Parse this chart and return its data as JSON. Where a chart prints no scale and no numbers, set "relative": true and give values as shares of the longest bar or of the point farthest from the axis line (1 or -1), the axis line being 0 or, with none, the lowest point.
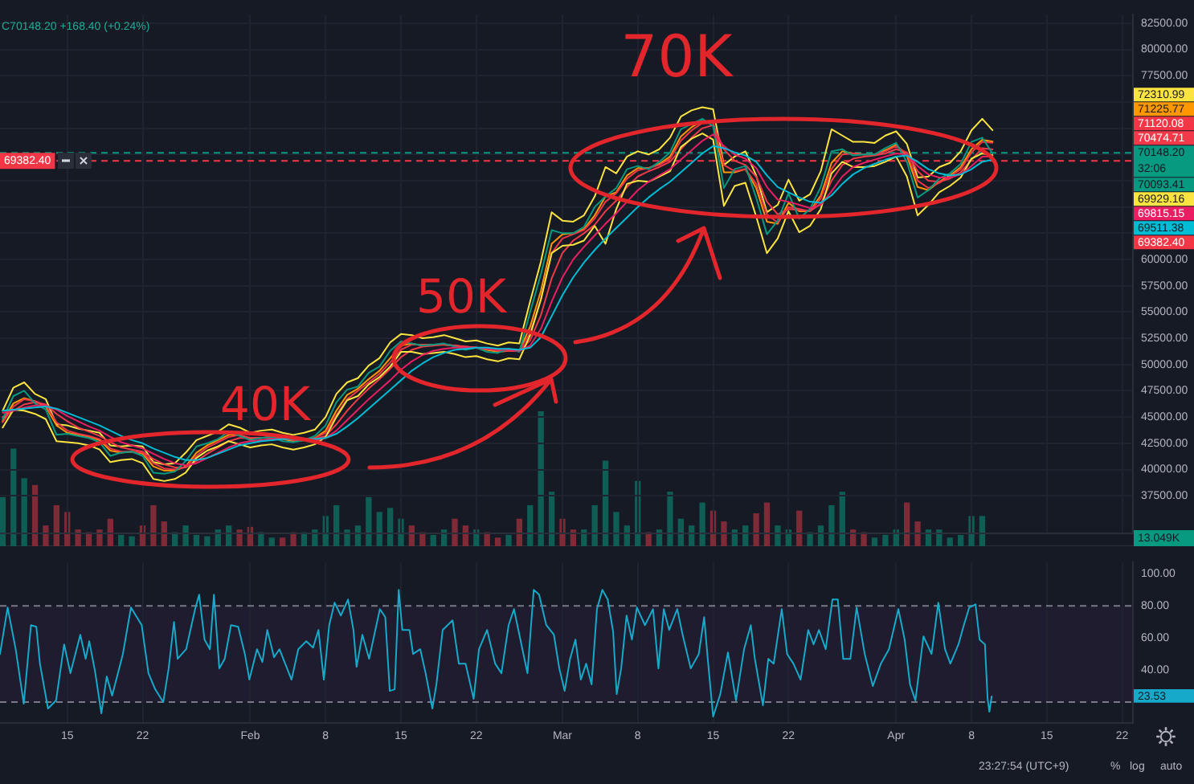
{
  "chart_data": [
    {
      "type": "line",
      "x": [
        "--01-09",
        "--01-10",
        "--01-11",
        "--01-12",
        "--01-13",
        "--01-14",
        "--01-15",
        "--01-16",
        "--01-17",
        "--01-18",
        "--01-19",
        "--01-20",
        "--01-21",
        "--01-22",
        "--01-23",
        "--01-24",
        "--01-25",
        "--01-26",
        "--01-27",
        "--01-28",
        "--01-29",
        "--01-30",
        "--01-31",
        "--02-01",
        "--02-02",
        "--02-03",
        "--02-04",
        "--02-05",
        "--02-06",
        "--02-07",
        "--02-08",
        "--02-09",
        "--02-10",
        "--02-11",
        "--02-12",
        "--02-13",
        "--02-14",
        "--02-15",
        "--02-16",
        "--02-17",
        "--02-18",
        "--02-19",
        "--02-20",
        "--02-21",
        "--02-22",
        "--02-23",
        "--02-24",
        "--02-25",
        "--02-26",
        "--02-27",
        "--02-28",
        "--02-29",
        "--03-01",
        "--03-02",
        "--03-03",
        "--03-04",
        "--03-05",
        "--03-06",
        "--03-07",
        "--03-08",
        "--03-09",
        "--03-10",
        "--03-11",
        "--03-12",
        "--03-13",
        "--03-14",
        "--03-15",
        "--03-16",
        "--03-17",
        "--03-18",
        "--03-19",
        "--03-20",
        "--03-21",
        "--03-22",
        "--03-23",
        "--03-24",
        "--03-25",
        "--03-26",
        "--03-27",
        "--03-28",
        "--03-29",
        "--03-30",
        "--03-31",
        "--04-01",
        "--04-02",
        "--04-03",
        "--04-04",
        "--04-05",
        "--04-06",
        "--04-07",
        "--04-08",
        "--04-09",
        "--04-09T23:00"
      ],
      "series": [
        {
          "color": "#fbe43f",
          "values": [
            45600,
            47800,
            48300,
            47200,
            46700,
            44300,
            44200,
            43900,
            43700,
            43500,
            42300,
            42200,
            42300,
            42200,
            40700,
            40500,
            40600,
            41600,
            42800,
            43200,
            43600,
            44300,
            44000,
            43500,
            43700,
            43800,
            43500,
            43300,
            43500,
            43800,
            45000,
            47200,
            48300,
            48700,
            49900,
            50600,
            52100,
            52900,
            52800,
            52500,
            52600,
            52800,
            52500,
            52200,
            52300,
            52000,
            51800,
            52100,
            52000,
            56000,
            59800,
            64500,
            63700,
            63600,
            64200,
            66000,
            68800,
            68200,
            69800,
            70300,
            70000,
            70500,
            71600,
            73600,
            74200,
            74500,
            74300,
            69000,
            69800,
            70300,
            68000,
            64500,
            65200,
            67600,
            65600,
            66200,
            68400,
            72400,
            71800,
            71200,
            71200,
            71100,
            71800,
            72200,
            71000,
            67800,
            67900,
            68800,
            69200,
            70300,
            72300,
            73400,
            72310.99
          ]
        },
        {
          "color": "#ff9800",
          "values": [
            44600,
            46300,
            46800,
            46500,
            46000,
            44200,
            43500,
            43300,
            43100,
            42800,
            41800,
            41600,
            41700,
            41500,
            40300,
            39900,
            39900,
            40300,
            41600,
            42300,
            42800,
            43300,
            43300,
            42900,
            43000,
            43100,
            42900,
            42700,
            42800,
            43000,
            43700,
            45600,
            47100,
            47700,
            48600,
            49400,
            50600,
            51800,
            52000,
            51800,
            51900,
            51900,
            51800,
            51600,
            51600,
            51400,
            51200,
            51300,
            51300,
            53600,
            57000,
            61500,
            62400,
            62500,
            62900,
            64200,
            66000,
            66400,
            68000,
            68700,
            68700,
            69100,
            69800,
            71700,
            72600,
            73200,
            73000,
            68300,
            68300,
            68600,
            66800,
            63600,
            63400,
            65400,
            64600,
            64600,
            66100,
            69200,
            70300,
            70100,
            70000,
            70000,
            70400,
            70900,
            69900,
            66900,
            66600,
            67400,
            68000,
            68800,
            70500,
            71400,
            71225.77
          ]
        },
        {
          "color": "#f23645",
          "values": [
            44500,
            46000,
            46700,
            46500,
            46100,
            44500,
            43700,
            43400,
            43200,
            42900,
            42000,
            41700,
            41700,
            41600,
            40600,
            40100,
            40000,
            40200,
            41300,
            42100,
            42600,
            43100,
            43300,
            43000,
            43000,
            43100,
            43000,
            42800,
            42800,
            43000,
            43500,
            45200,
            46700,
            47500,
            48300,
            49100,
            50200,
            51400,
            51900,
            51900,
            51900,
            51900,
            51800,
            51700,
            51600,
            51500,
            51300,
            51300,
            51300,
            53000,
            56200,
            60600,
            62000,
            62400,
            62800,
            63900,
            65500,
            66300,
            67700,
            68500,
            68700,
            69000,
            69600,
            71300,
            72300,
            73000,
            73000,
            69000,
            68400,
            68600,
            67200,
            64300,
            63500,
            65000,
            64800,
            64600,
            65800,
            68600,
            70000,
            70100,
            70000,
            70000,
            70300,
            70800,
            70100,
            67500,
            66800,
            67300,
            67900,
            68600,
            70200,
            71200,
            71120.08
          ]
        },
        {
          "color": "#f03a4a",
          "values": [
            45000,
            45600,
            46200,
            46400,
            46200,
            45300,
            44600,
            44000,
            43600,
            43200,
            42600,
            42100,
            41900,
            41700,
            41000,
            40500,
            40200,
            40200,
            40800,
            41500,
            42100,
            42700,
            43000,
            43000,
            43000,
            43000,
            43000,
            42900,
            42800,
            42900,
            43200,
            44300,
            45600,
            46700,
            47700,
            48600,
            49600,
            50700,
            51400,
            51700,
            51800,
            51900,
            51800,
            51700,
            51600,
            51500,
            51400,
            51300,
            51300,
            52300,
            54700,
            58200,
            60600,
            61800,
            62500,
            63300,
            64600,
            65600,
            66900,
            67900,
            68400,
            68800,
            69300,
            70500,
            71600,
            72500,
            72800,
            70500,
            69400,
            69000,
            67900,
            65500,
            64300,
            64800,
            64700,
            64600,
            65300,
            67500,
            69000,
            69600,
            69800,
            69900,
            70100,
            70500,
            70200,
            68400,
            67500,
            67400,
            67700,
            68300,
            69500,
            70600,
            70474.71
          ]
        },
        {
          "color": "#089981",
          "values": [
            44800,
            47000,
            47500,
            46300,
            45700,
            43300,
            43400,
            43200,
            43000,
            42600,
            41300,
            41600,
            41700,
            41300,
            39700,
            39600,
            39800,
            40800,
            42200,
            42500,
            42900,
            43600,
            43200,
            42800,
            43000,
            43100,
            42700,
            42600,
            42800,
            43200,
            44200,
            46400,
            47600,
            47900,
            49200,
            49800,
            51300,
            52200,
            52000,
            51800,
            51900,
            52000,
            51700,
            51400,
            51600,
            51200,
            51100,
            51500,
            51200,
            55000,
            58600,
            62800,
            62500,
            62500,
            63100,
            65000,
            66000,
            66800,
            68600,
            68900,
            68600,
            69300,
            70200,
            72400,
            72900,
            73400,
            72700,
            66800,
            68600,
            68900,
            65900,
            62400,
            63700,
            66300,
            63900,
            64800,
            66900,
            70300,
            70500,
            69900,
            70000,
            70000,
            70600,
            71100,
            69300,
            65900,
            66600,
            67700,
            68200,
            69100,
            71200,
            71600,
            70093.41
          ]
        },
        {
          "color": "#fbe43f",
          "values": [
            44000,
            45700,
            45600,
            45300,
            44800,
            42700,
            42600,
            42500,
            42300,
            41900,
            40700,
            40900,
            41000,
            40600,
            39100,
            38900,
            39100,
            39700,
            41100,
            41800,
            42200,
            42700,
            42400,
            42100,
            42300,
            42400,
            42100,
            41900,
            42100,
            42400,
            43100,
            45000,
            46600,
            47000,
            48100,
            48800,
            49800,
            51200,
            51200,
            51000,
            51100,
            51200,
            51000,
            50700,
            50800,
            50500,
            50300,
            50600,
            50500,
            52800,
            56200,
            60600,
            61300,
            61400,
            61800,
            63200,
            61500,
            64800,
            67200,
            67500,
            67400,
            67900,
            68400,
            70700,
            71500,
            72000,
            71400,
            65100,
            67000,
            67300,
            64100,
            60600,
            62000,
            64600,
            62600,
            63200,
            64800,
            68200,
            69300,
            68800,
            68800,
            68900,
            69300,
            69800,
            67900,
            64200,
            65200,
            66400,
            67000,
            67800,
            69600,
            70100,
            69929.16
          ]
        },
        {
          "color": "#e91e63",
          "values": [
            45400,
            45600,
            45900,
            46100,
            46100,
            45700,
            45100,
            44600,
            44100,
            43700,
            43100,
            42600,
            42300,
            42000,
            41500,
            41000,
            40600,
            40400,
            40600,
            41100,
            41600,
            42100,
            42500,
            42700,
            42800,
            42900,
            42900,
            42900,
            42800,
            42800,
            43000,
            43700,
            44700,
            45700,
            46700,
            47600,
            48500,
            49500,
            50300,
            50900,
            51300,
            51500,
            51600,
            51600,
            51600,
            51500,
            51400,
            51400,
            51300,
            51800,
            53400,
            56000,
            58300,
            60000,
            61200,
            62300,
            63400,
            64400,
            65500,
            66600,
            67400,
            68000,
            68600,
            69500,
            70400,
            71300,
            71900,
            70800,
            70000,
            69600,
            68700,
            66900,
            65700,
            65500,
            65200,
            64900,
            65200,
            66500,
            67900,
            68800,
            69200,
            69500,
            69800,
            70100,
            70000,
            68900,
            68100,
            67800,
            67800,
            68100,
            68900,
            69800,
            69815.15
          ]
        },
        {
          "color": "#00bcd4",
          "values": [
            45600,
            45700,
            45800,
            45900,
            46000,
            45800,
            45400,
            45000,
            44600,
            44200,
            43700,
            43200,
            42800,
            42500,
            42000,
            41600,
            41200,
            40900,
            40900,
            41100,
            41500,
            41900,
            42300,
            42500,
            42700,
            42800,
            42900,
            42900,
            42900,
            42900,
            43000,
            43400,
            44100,
            44900,
            45800,
            46700,
            47600,
            48500,
            49400,
            50100,
            50700,
            51100,
            51400,
            51500,
            51600,
            51600,
            51500,
            51500,
            51400,
            51600,
            52600,
            54600,
            56600,
            58300,
            59700,
            60900,
            62000,
            63000,
            64000,
            65000,
            65900,
            66700,
            67400,
            68300,
            69200,
            70100,
            70800,
            70600,
            70200,
            69900,
            69300,
            68000,
            66900,
            66400,
            65900,
            65500,
            65400,
            66100,
            67200,
            68100,
            68700,
            69100,
            69500,
            69800,
            69900,
            69300,
            68600,
            68200,
            68000,
            68100,
            68600,
            69300,
            69511.38
          ]
        }
      ],
      "xlim": [
        "--01-08T18:00",
        "--04-23"
      ],
      "ylim": [
        33950,
        83300
      ],
      "xticks": [
        {
          "value": "--01-15",
          "label": null
        },
        {
          "value": "--01-22",
          "label": null
        },
        {
          "value": "--02-01",
          "label": null
        },
        {
          "value": "--02-08",
          "label": null
        },
        {
          "value": "--02-15",
          "label": null
        },
        {
          "value": "--02-22",
          "label": null
        },
        {
          "value": "--03-01",
          "label": null
        },
        {
          "value": "--03-08",
          "label": null
        },
        {
          "value": "--03-15",
          "label": null
        },
        {
          "value": "--03-22",
          "label": null
        },
        {
          "value": "--04-01",
          "label": null
        },
        {
          "value": "--04-08",
          "label": null
        },
        {
          "value": "--04-15",
          "label": null
        },
        {
          "value": "--04-22",
          "label": null
        }
      ],
      "yticks": [
        {
          "value": 37500,
          "label": "37500.00"
        },
        {
          "value": 40000,
          "label": "40000.00"
        },
        {
          "value": 42500,
          "label": "42500.00"
        },
        {
          "value": 45000,
          "label": "45000.00"
        },
        {
          "value": 47500,
          "label": "47500.00"
        },
        {
          "value": 50000,
          "label": "50000.00"
        },
        {
          "value": 52500,
          "label": "52500.00"
        },
        {
          "value": 55000,
          "label": "55000.00"
        },
        {
          "value": 57500,
          "label": "57500.00"
        },
        {
          "value": 60000,
          "label": "60000.00"
        },
        {
          "value": 62500,
          "label": null
        },
        {
          "value": 65000,
          "label": null
        },
        {
          "value": 67500,
          "label": null
        },
        {
          "value": 70000,
          "label": null
        },
        {
          "value": 72500,
          "label": null
        },
        {
          "value": 75000,
          "label": null
        },
        {
          "value": 77500,
          "label": "77500.00"
        },
        {
          "value": 80000,
          "label": "80000.00"
        },
        {
          "value": 82500,
          "label": "82500.00"
        }
      ],
      "tick_labels": "y",
      "grid": true,
      "ref_lines": [
        {
          "axis": "y",
          "value": 70148.2,
          "label": "70148.20",
          "color": "#089981",
          "line_style": "dashed"
        },
        {
          "axis": "y",
          "value": 69382.4,
          "label": "69382.40",
          "color": "#f23645",
          "line_style": "dashed"
        }
      ],
      "annotations": [
        "C70148.20 +168.40 (+0.24%)",
        "32:06",
        "40K",
        "50K",
        "70K",
        "72310.99",
        "71225.77",
        "71120.08",
        "70474.71",
        "70093.41",
        "69929.16",
        "69815.15",
        "69511.38"
      ]
    },
    {
      "type": "bar",
      "relative": true,
      "x": [
        "--01-09",
        "--01-10",
        "--01-11",
        "--01-12",
        "--01-13",
        "--01-14",
        "--01-15",
        "--01-16",
        "--01-17",
        "--01-18",
        "--01-19",
        "--01-20",
        "--01-21",
        "--01-22",
        "--01-23",
        "--01-24",
        "--01-25",
        "--01-26",
        "--01-27",
        "--01-28",
        "--01-29",
        "--01-30",
        "--01-31",
        "--02-01",
        "--02-02",
        "--02-03",
        "--02-04",
        "--02-05",
        "--02-06",
        "--02-07",
        "--02-08",
        "--02-09",
        "--02-10",
        "--02-11",
        "--02-12",
        "--02-13",
        "--02-14",
        "--02-15",
        "--02-16",
        "--02-17",
        "--02-18",
        "--02-19",
        "--02-20",
        "--02-21",
        "--02-22",
        "--02-23",
        "--02-24",
        "--02-25",
        "--02-26",
        "--02-27",
        "--02-28",
        "--02-29",
        "--03-01",
        "--03-02",
        "--03-03",
        "--03-04",
        "--03-05",
        "--03-06",
        "--03-07",
        "--03-08",
        "--03-09",
        "--03-10",
        "--03-11",
        "--03-12",
        "--03-13",
        "--03-14",
        "--03-15",
        "--03-16",
        "--03-17",
        "--03-18",
        "--03-19",
        "--03-20",
        "--03-21",
        "--03-22",
        "--03-23",
        "--03-24",
        "--03-25",
        "--03-26",
        "--03-27",
        "--03-28",
        "--03-29",
        "--03-30",
        "--03-31",
        "--04-01",
        "--04-02",
        "--04-03",
        "--04-04",
        "--04-05",
        "--04-06",
        "--04-07",
        "--04-08",
        "--04-09"
      ],
      "values": [
        0.36,
        0.72,
        0.5,
        0.45,
        0.15,
        0.3,
        0.25,
        0.12,
        0.1,
        0.12,
        0.2,
        0.08,
        0.07,
        0.15,
        0.3,
        0.18,
        0.1,
        0.15,
        0.08,
        0.07,
        0.12,
        0.15,
        0.12,
        0.14,
        0.1,
        0.06,
        0.06,
        0.1,
        0.1,
        0.12,
        0.22,
        0.3,
        0.12,
        0.15,
        0.36,
        0.25,
        0.28,
        0.2,
        0.15,
        0.1,
        0.08,
        0.12,
        0.2,
        0.15,
        0.12,
        0.1,
        0.06,
        0.08,
        0.2,
        0.3,
        1,
        0.4,
        0.2,
        0.12,
        0.12,
        0.3,
        0.63,
        0.25,
        0.15,
        0.48,
        0.1,
        0.12,
        0.4,
        0.2,
        0.15,
        0.32,
        0.26,
        0.18,
        0.12,
        0.15,
        0.24,
        0.32,
        0.15,
        0.12,
        0.26,
        0.1,
        0.15,
        0.3,
        0.4,
        0.12,
        0.1,
        0.06,
        0.08,
        0.12,
        0.32,
        0.18,
        0.12,
        0.12,
        0.06,
        0.08,
        0.22,
        0.22
      ],
      "colors": [
        "#0f5e55",
        "#0f5e55",
        "#0f5e55",
        "#7e2a37",
        "#7e2a37",
        "#7e2a37",
        "#7e2a37",
        "#7e2a37",
        "#7e2a37",
        "#7e2a37",
        "#7e2a37",
        "#0f5e55",
        "#0f5e55",
        "#7e2a37",
        "#7e2a37",
        "#7e2a37",
        "#0f5e55",
        "#0f5e55",
        "#0f5e55",
        "#0f5e55",
        "#0f5e55",
        "#0f5e55",
        "#7e2a37",
        "#7e2a37",
        "#0f5e55",
        "#0f5e55",
        "#7e2a37",
        "#7e2a37",
        "#0f5e55",
        "#0f5e55",
        "#0f5e55",
        "#0f5e55",
        "#0f5e55",
        "#0f5e55",
        "#0f5e55",
        "#0f5e55",
        "#0f5e55",
        "#0f5e55",
        "#7e2a37",
        "#7e2a37",
        "#0f5e55",
        "#0f5e55",
        "#7e2a37",
        "#7e2a37",
        "#0f5e55",
        "#7e2a37",
        "#7e2a37",
        "#0f5e55",
        "#7e2a37",
        "#0f5e55",
        "#0f5e55",
        "#0f5e55",
        "#7e2a37",
        "#7e2a37",
        "#0f5e55",
        "#0f5e55",
        "#0f5e55",
        "#0f5e55",
        "#0f5e55",
        "#0f5e55",
        "#7e2a37",
        "#0f5e55",
        "#0f5e55",
        "#0f5e55",
        "#0f5e55",
        "#0f5e55",
        "#7e2a37",
        "#7e2a37",
        "#0f5e55",
        "#0f5e55",
        "#7e2a37",
        "#7e2a37",
        "#0f5e55",
        "#0f5e55",
        "#7e2a37",
        "#0f5e55",
        "#0f5e55",
        "#0f5e55",
        "#0f5e55",
        "#7e2a37",
        "#7e2a37",
        "#0f5e55",
        "#0f5e55",
        "#0f5e55",
        "#7e2a37",
        "#7e2a37",
        "#0f5e55",
        "#0f5e55",
        "#0f5e55",
        "#0f5e55",
        "#0f5e55",
        "#0f5e55"
      ],
      "xlim": [
        "--01-08T18:00",
        "--04-23"
      ],
      "tick_labels": false,
      "annotations": [
        "13.049K"
      ]
    },
    {
      "type": "line",
      "series": [
        {
          "color": "#17a9c9",
          "x": [
            "--01-08T18:00",
            "--01-09T11:00",
            "--01-10T05:00",
            "--01-10T23:00",
            "--01-11T15:00",
            "--01-12T03:00",
            "--01-12T11:00",
            "--01-13T05:00",
            "--01-13T23:00",
            "--01-14T17:00",
            "--01-15T07:00",
            "--01-16T05:00",
            "--01-16T17:00",
            "--01-17T01:00",
            "--01-17T14:00",
            "--01-18T04:00",
            "--01-18T16:00",
            "--01-19T04:00",
            "--01-20T04:00",
            "--01-20T22:00",
            "--01-21T22:00",
            "--01-22T13:00",
            "--01-23T04:00",
            "--01-23T22:00",
            "--01-24T10:00",
            "--01-24T22:00",
            "--01-25T06:00",
            "--01-26T01:00",
            "--01-26T21:00",
            "--01-27T06:00",
            "--01-27T18:00",
            "--01-28T06:00",
            "--01-28T15:00",
            "--01-29T03:00",
            "--01-29T15:00",
            "--01-30T05:00",
            "--01-30T21:00",
            "--01-31T12:00",
            "--01-31T22:00",
            "--02-01T15:00",
            "--02-02T03:00",
            "--02-02T14:00",
            "--02-03T05:00",
            "--02-03T17:00",
            "--02-04T20:00",
            "--02-05T11:00",
            "--02-06T05:00",
            "--02-06T20:00",
            "--02-07T08:00",
            "--02-07T20:00",
            "--02-08T08:00",
            "--02-08T20:00",
            "--02-09T10:00",
            "--02-10T02:00",
            "--02-10T14:00",
            "--02-10T21:00",
            "--02-11T10:00",
            "--02-12T01:00",
            "--02-13T01:00",
            "--02-13T13:00",
            "--02-13T23:00",
            "--02-14T10:00",
            "--02-14T19:00",
            "--02-15T03:00",
            "--02-15T19:00",
            "--02-16T03:00",
            "--02-16T19:00",
            "--02-17T07:00",
            "--02-17T22:00",
            "--02-18T07:00",
            "--02-18T21:00",
            "--02-19T19:00",
            "--02-20T09:00",
            "--02-21T00:00",
            "--02-21T18:00",
            "--02-22T06:00",
            "--02-23T00:00",
            "--02-23T18:00",
            "--02-24T08:00",
            "--02-25T00:00",
            "--02-25T12:00",
            "--02-26T00:00",
            "--02-26T18:00",
            "--02-27T08:00",
            "--02-27T20:00",
            "--02-28T12:00",
            "--02-29T05:00",
            "--02-29T17:00",
            "--03-01T05:00",
            "--03-01T17:00",
            "--03-02T05:00",
            "--03-02T17:00",
            "--03-03T05:00",
            "--03-03T17:00",
            "--03-04T05:00",
            "--03-04T17:00",
            "--03-05T05:00",
            "--03-05T17:00",
            "--03-06T01:00",
            "--03-06T11:00",
            "--03-06T23:00",
            "--03-07T11:00",
            "--03-07T22:00",
            "--03-08T16:00",
            "--03-09T10:00",
            "--03-09T22:00",
            "--03-10T10:00",
            "--03-10T22:00",
            "--03-11T16:00",
            "--03-12T04:00",
            "--03-12T22:00",
            "--03-13T16:00",
            "--03-14T04:00",
            "--03-14T12:00",
            "--03-15T00:00",
            "--03-15T16:00",
            "--03-16T09:00",
            "--03-17T03:00",
            "--03-17T21:00",
            "--03-18T12:00",
            "--03-18T21:00",
            "--03-19T15:00",
            "--03-20T03:00",
            "--03-20T15:00",
            "--03-21T09:00",
            "--03-21T21:00",
            "--03-22T11:00",
            "--03-23T03:00",
            "--03-23T20:00",
            "--03-24T08:00",
            "--03-24T20:00",
            "--03-25T11:00",
            "--03-26T02:00",
            "--03-26T14:00",
            "--03-27T02:00",
            "--03-27T18:00",
            "--03-28T08:00",
            "--03-29T02:00",
            "--03-29T20:00",
            "--03-30T14:00",
            "--03-31T08:00",
            "--04-01T05:00",
            "--04-01T19:00",
            "--04-02T07:00",
            "--04-02T19:00",
            "--04-03T13:00",
            "--04-04T07:00",
            "--04-04T22:00",
            "--04-05T13:00",
            "--04-06T01:00",
            "--04-06T19:00",
            "--04-07T07:00",
            "--04-07T19:00",
            "--04-08T09:00",
            "--04-08T18:00",
            "--04-09T06:00",
            "--04-09T12:00",
            "--04-09T16:00",
            "--04-09T21:00"
          ],
          "values": [
            50,
            79,
            53,
            19,
            68,
            67,
            44,
            16,
            21,
            56,
            38,
            62,
            47,
            58,
            39,
            13,
            36,
            24,
            50,
            79,
            68,
            38,
            28,
            20,
            41,
            70,
            47,
            53,
            78,
            87,
            59,
            53,
            87,
            41,
            47,
            68,
            67,
            50,
            34,
            53,
            45,
            65,
            48,
            53,
            34,
            53,
            58,
            54,
            65,
            34,
            68,
            82,
            74,
            84,
            65,
            42,
            62,
            47,
            78,
            73,
            27,
            28,
            90,
            65,
            65,
            50,
            53,
            38,
            16,
            31,
            65,
            71,
            44,
            44,
            22,
            53,
            65,
            44,
            38,
            68,
            78,
            62,
            38,
            90,
            87,
            68,
            62,
            41,
            27,
            47,
            59,
            34,
            44,
            31,
            78,
            90,
            84,
            64,
            25,
            41,
            74,
            59,
            79,
            68,
            78,
            41,
            78,
            65,
            78,
            62,
            41,
            50,
            73,
            47,
            11,
            25,
            51,
            21,
            53,
            68,
            47,
            18,
            47,
            44,
            78,
            50,
            44,
            34,
            65,
            56,
            65,
            53,
            84,
            84,
            47,
            47,
            79,
            50,
            30,
            44,
            53,
            78,
            59,
            31,
            21,
            61,
            50,
            82,
            53,
            44,
            56,
            68,
            79,
            81,
            59,
            56,
            22,
            14,
            23.53
          ]
        }
      ],
      "xlim": [
        "--01-08T18:00",
        "--04-23"
      ],
      "ylim": [
        7,
        107
      ],
      "xticks": [
        {
          "value": "--01-15",
          "label": "15"
        },
        {
          "value": "--01-22",
          "label": "22"
        },
        {
          "value": "--02-01",
          "label": "Feb"
        },
        {
          "value": "--02-08",
          "label": "8"
        },
        {
          "value": "--02-15",
          "label": "15"
        },
        {
          "value": "--02-22",
          "label": "22"
        },
        {
          "value": "--03-01",
          "label": "Mar"
        },
        {
          "value": "--03-08",
          "label": "8"
        },
        {
          "value": "--03-15",
          "label": "15"
        },
        {
          "value": "--03-22",
          "label": "22"
        },
        {
          "value": "--04-01",
          "label": "Apr"
        },
        {
          "value": "--04-08",
          "label": "8"
        },
        {
          "value": "--04-15",
          "label": "15"
        },
        {
          "value": "--04-22",
          "label": "22"
        }
      ],
      "yticks": [
        {
          "value": 20,
          "label": null
        },
        {
          "value": 40,
          "label": "40.00"
        },
        {
          "value": 60,
          "label": "60.00"
        },
        {
          "value": 80,
          "label": "80.00"
        },
        {
          "value": 100,
          "label": "100.00"
        }
      ],
      "grid": "x",
      "ref_lines": [
        {
          "axis": "y",
          "value": 80,
          "color": "#787b86",
          "line_style": "dashed"
        },
        {
          "axis": "y",
          "value": 20,
          "color": "#787b86",
          "line_style": "dashed"
        }
      ],
      "bands": [
        {
          "axis": "y",
          "from": 20,
          "to": 80,
          "color": "#1e1c2e"
        }
      ],
      "annotations": [
        "23:27:54 (UTC+9)",
        "%",
        "log",
        "auto",
        "23.53"
      ]
    }
  ]
}
